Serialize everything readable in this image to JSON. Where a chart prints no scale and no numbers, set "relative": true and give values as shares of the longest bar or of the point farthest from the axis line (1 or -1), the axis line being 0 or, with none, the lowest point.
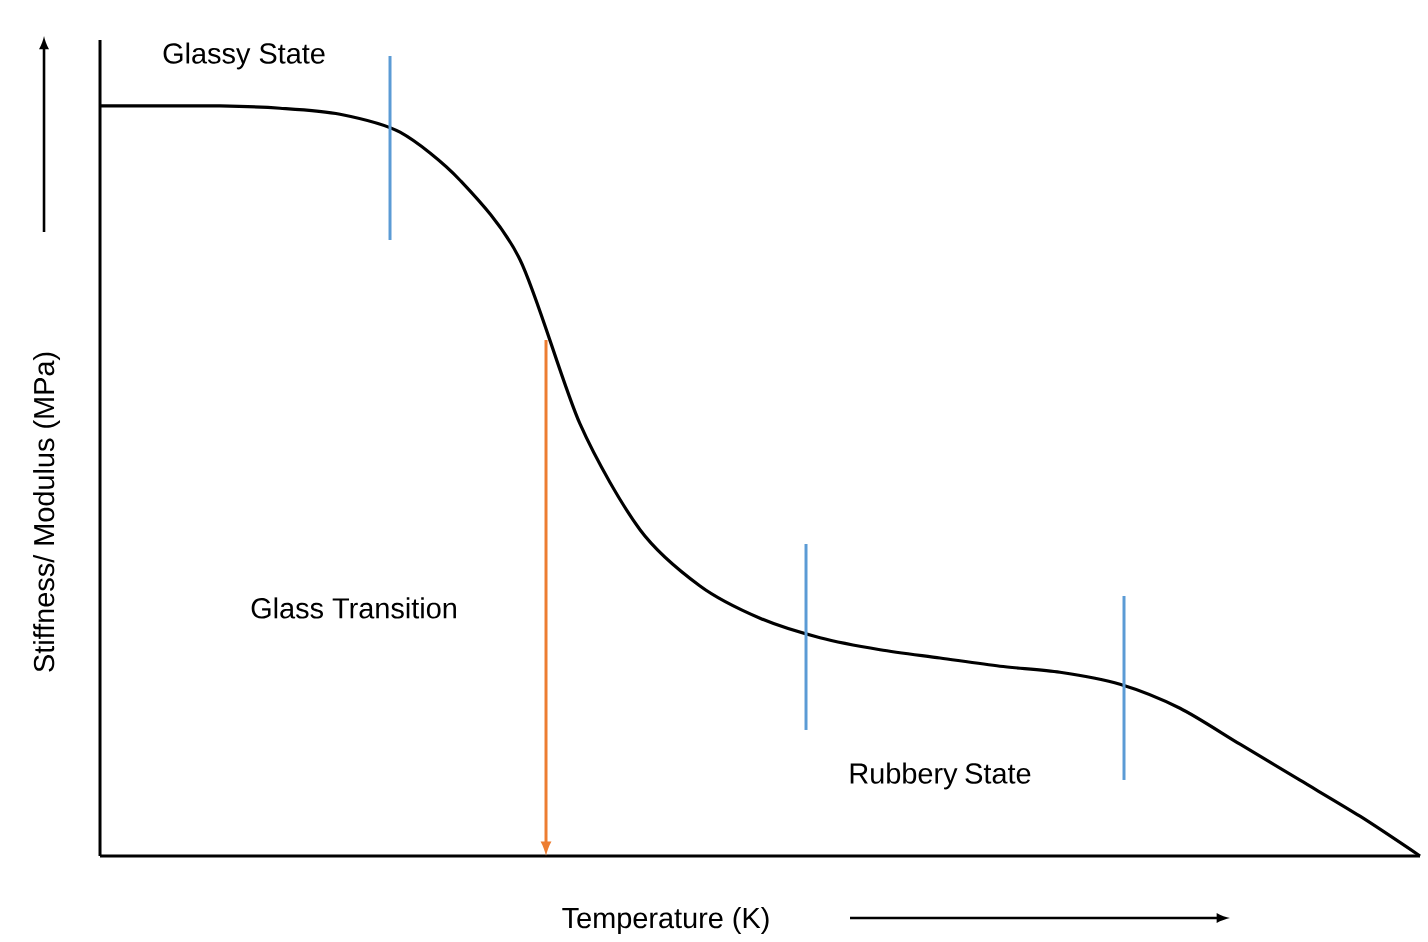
{
  "chart_data": {
    "type": "line",
    "relative": true,
    "categories": [
      null,
      null,
      null,
      null,
      null,
      null,
      null,
      null,
      null,
      null,
      null,
      null,
      null,
      null,
      null,
      null,
      null,
      null,
      null,
      null,
      null,
      null,
      null
    ],
    "series": [
      {
        "color": "#000000",
        "values": [
          1.0,
          1.0,
          1.0,
          0.997,
          0.989,
          0.965,
          0.901,
          0.795,
          0.576,
          0.435,
          0.36,
          0.317,
          0.291,
          0.275,
          0.264,
          0.253,
          0.245,
          0.229,
          0.197,
          0.149,
          0.101,
          0.053,
          0.0
        ]
      }
    ],
    "xlabel": "Temperature (K)",
    "ylabel": "Stiffness/ Modulus (MPa)",
    "annotations": [
      "Glassy State",
      "Glass Transition",
      "Rubbery State"
    ]
  }
}
